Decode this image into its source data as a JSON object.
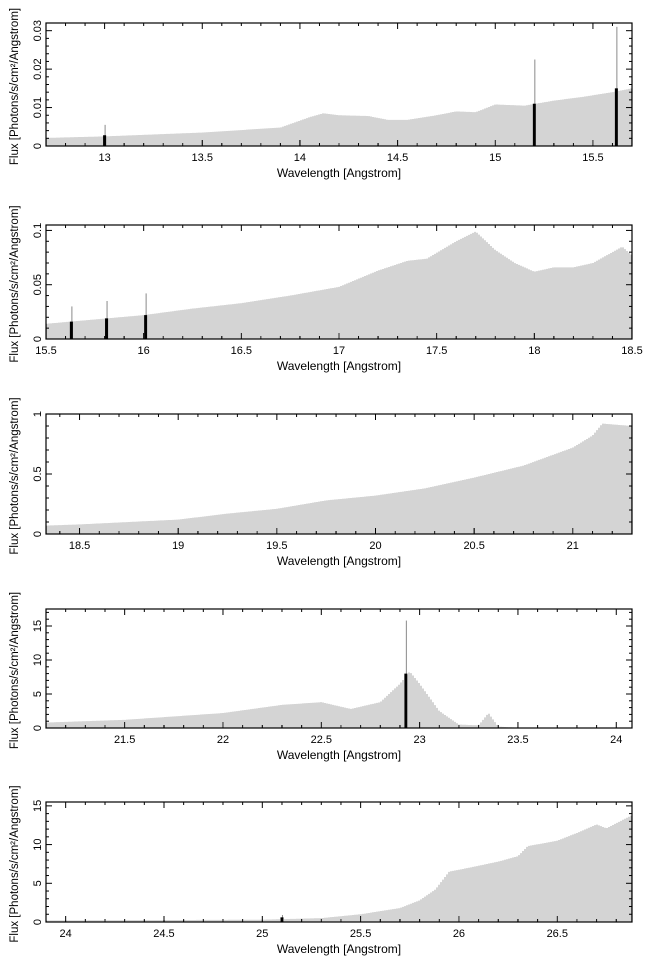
{
  "figure": {
    "xlabel": "Wavelength [Angstrom]",
    "ylabel": "Flux [Photons/s/cm²/Angstrom]"
  },
  "chart_data": [
    {
      "type": "bar",
      "title": "",
      "xlabel": "Wavelength [Angstrom]",
      "ylabel": "Flux [Photons/s/cm²/Angstrom]",
      "xlim": [
        12.7,
        15.7
      ],
      "ylim": [
        0,
        0.032
      ],
      "xticks": [
        13,
        13.5,
        14,
        14.5,
        15,
        15.5
      ],
      "xtick_labels": [
        "13",
        "13.5",
        "14",
        "14.5",
        "15",
        "15.5"
      ],
      "yticks": [
        0,
        0.01,
        0.02,
        0.03
      ],
      "ytick_labels": [
        "0",
        "0.01",
        "0.02",
        "0.03"
      ],
      "grid": false,
      "series": [
        {
          "role": "continuum",
          "x": [
            12.7,
            13.0,
            13.5,
            13.9,
            14.05,
            14.12,
            14.2,
            14.35,
            14.45,
            14.55,
            14.7,
            14.8,
            14.9,
            15.0,
            15.15,
            15.3,
            15.45,
            15.6,
            15.7
          ],
          "values": [
            0.0021,
            0.0025,
            0.0035,
            0.0048,
            0.0075,
            0.0085,
            0.008,
            0.0078,
            0.0068,
            0.0068,
            0.008,
            0.009,
            0.0088,
            0.0108,
            0.0105,
            0.0118,
            0.0128,
            0.014,
            0.015
          ]
        },
        {
          "role": "lines",
          "x": [
            13.0,
            15.2,
            15.62
          ],
          "values": [
            0.0028,
            0.011,
            0.015
          ],
          "errors": [
            0.0055,
            0.0225,
            0.031
          ]
        }
      ]
    },
    {
      "type": "bar",
      "title": "",
      "xlabel": "Wavelength [Angstrom]",
      "ylabel": "Flux [Photons/s/cm²/Angstrom]",
      "xlim": [
        15.5,
        18.5
      ],
      "ylim": [
        0,
        0.105
      ],
      "xticks": [
        15.5,
        16,
        16.5,
        17,
        17.5,
        18,
        18.5
      ],
      "xtick_labels": [
        "15.5",
        "16",
        "16.5",
        "17",
        "17.5",
        "18",
        "18.5"
      ],
      "yticks": [
        0,
        0.05,
        0.1
      ],
      "ytick_labels": [
        "0",
        "0.05",
        "0.1"
      ],
      "grid": false,
      "series": [
        {
          "role": "continuum",
          "x": [
            15.5,
            15.75,
            16.0,
            16.25,
            16.5,
            16.75,
            17.0,
            17.2,
            17.35,
            17.45,
            17.6,
            17.7,
            17.8,
            17.9,
            18.0,
            18.1,
            18.2,
            18.3,
            18.4,
            18.45,
            18.5
          ],
          "values": [
            0.014,
            0.018,
            0.022,
            0.028,
            0.033,
            0.04,
            0.048,
            0.063,
            0.072,
            0.074,
            0.09,
            0.099,
            0.082,
            0.07,
            0.062,
            0.066,
            0.066,
            0.07,
            0.08,
            0.085,
            0.077
          ]
        },
        {
          "role": "lines",
          "x": [
            15.63,
            15.81,
            16.01
          ],
          "values": [
            0.016,
            0.019,
            0.022
          ],
          "errors": [
            0.03,
            0.035,
            0.042
          ]
        }
      ]
    },
    {
      "type": "bar",
      "title": "",
      "xlabel": "Wavelength [Angstrom]",
      "ylabel": "Flux [Photons/s/cm²/Angstrom]",
      "xlim": [
        18.33,
        21.3
      ],
      "ylim": [
        0,
        1.0
      ],
      "xticks": [
        18.5,
        19,
        19.5,
        20,
        20.5,
        21
      ],
      "xtick_labels": [
        "18.5",
        "19",
        "19.5",
        "20",
        "20.5",
        "21"
      ],
      "yticks": [
        0,
        0.5,
        1
      ],
      "ytick_labels": [
        "0",
        "0.5",
        "1"
      ],
      "grid": false,
      "series": [
        {
          "role": "continuum",
          "x": [
            18.33,
            18.5,
            18.75,
            19.0,
            19.25,
            19.5,
            19.75,
            20.0,
            20.25,
            20.5,
            20.75,
            21.0,
            21.1,
            21.15,
            21.3
          ],
          "values": [
            0.07,
            0.08,
            0.1,
            0.12,
            0.17,
            0.21,
            0.28,
            0.32,
            0.38,
            0.47,
            0.57,
            0.72,
            0.82,
            0.92,
            0.9
          ]
        }
      ]
    },
    {
      "type": "bar",
      "title": "",
      "xlabel": "Wavelength [Angstrom]",
      "ylabel": "Flux [Photons/s/cm²/Angstrom]",
      "xlim": [
        21.1,
        24.08
      ],
      "ylim": [
        0,
        17.5
      ],
      "xticks": [
        21.5,
        22,
        22.5,
        23,
        23.5,
        24
      ],
      "xtick_labels": [
        "21.5",
        "22",
        "22.5",
        "23",
        "23.5",
        "24"
      ],
      "yticks": [
        0,
        5,
        10,
        15
      ],
      "ytick_labels": [
        "0",
        "5",
        "10",
        "15"
      ],
      "grid": false,
      "series": [
        {
          "role": "continuum",
          "x": [
            21.1,
            21.5,
            22.0,
            22.3,
            22.5,
            22.65,
            22.8,
            22.9,
            22.95,
            23.0,
            23.1,
            23.2,
            23.3,
            23.35,
            23.4,
            23.5,
            24.08
          ],
          "values": [
            0.8,
            1.2,
            2.2,
            3.4,
            3.8,
            2.8,
            3.8,
            6.5,
            8.3,
            6.5,
            2.5,
            0.5,
            0.4,
            2.2,
            0.2,
            0.05,
            0.05
          ]
        },
        {
          "role": "lines",
          "x": [
            22.93
          ],
          "values": [
            8.0
          ],
          "errors": [
            15.8
          ]
        }
      ]
    },
    {
      "type": "bar",
      "title": "",
      "xlabel": "Wavelength [Angstrom]",
      "ylabel": "Flux [Photons/s/cm²/Angstrom]",
      "xlim": [
        23.9,
        26.88
      ],
      "ylim": [
        0,
        15.5
      ],
      "xticks": [
        24,
        24.5,
        25,
        25.5,
        26,
        26.5
      ],
      "xtick_labels": [
        "24",
        "24.5",
        "25",
        "25.5",
        "26",
        "26.5"
      ],
      "yticks": [
        0,
        5,
        10,
        15
      ],
      "ytick_labels": [
        "0",
        "5",
        "10",
        "15"
      ],
      "grid": false,
      "series": [
        {
          "role": "continuum",
          "x": [
            23.9,
            24.5,
            25.0,
            25.3,
            25.5,
            25.7,
            25.8,
            25.88,
            25.95,
            26.05,
            26.2,
            26.3,
            26.35,
            26.5,
            26.6,
            26.7,
            26.75,
            26.88
          ],
          "values": [
            0.2,
            0.25,
            0.3,
            0.5,
            1.0,
            1.8,
            2.8,
            4.2,
            6.5,
            7.0,
            7.8,
            8.5,
            9.8,
            10.5,
            11.5,
            12.6,
            12.1,
            13.8
          ]
        },
        {
          "role": "lines",
          "x": [
            25.1
          ],
          "values": [
            0.6
          ],
          "errors": [
            0.9
          ]
        }
      ]
    }
  ]
}
